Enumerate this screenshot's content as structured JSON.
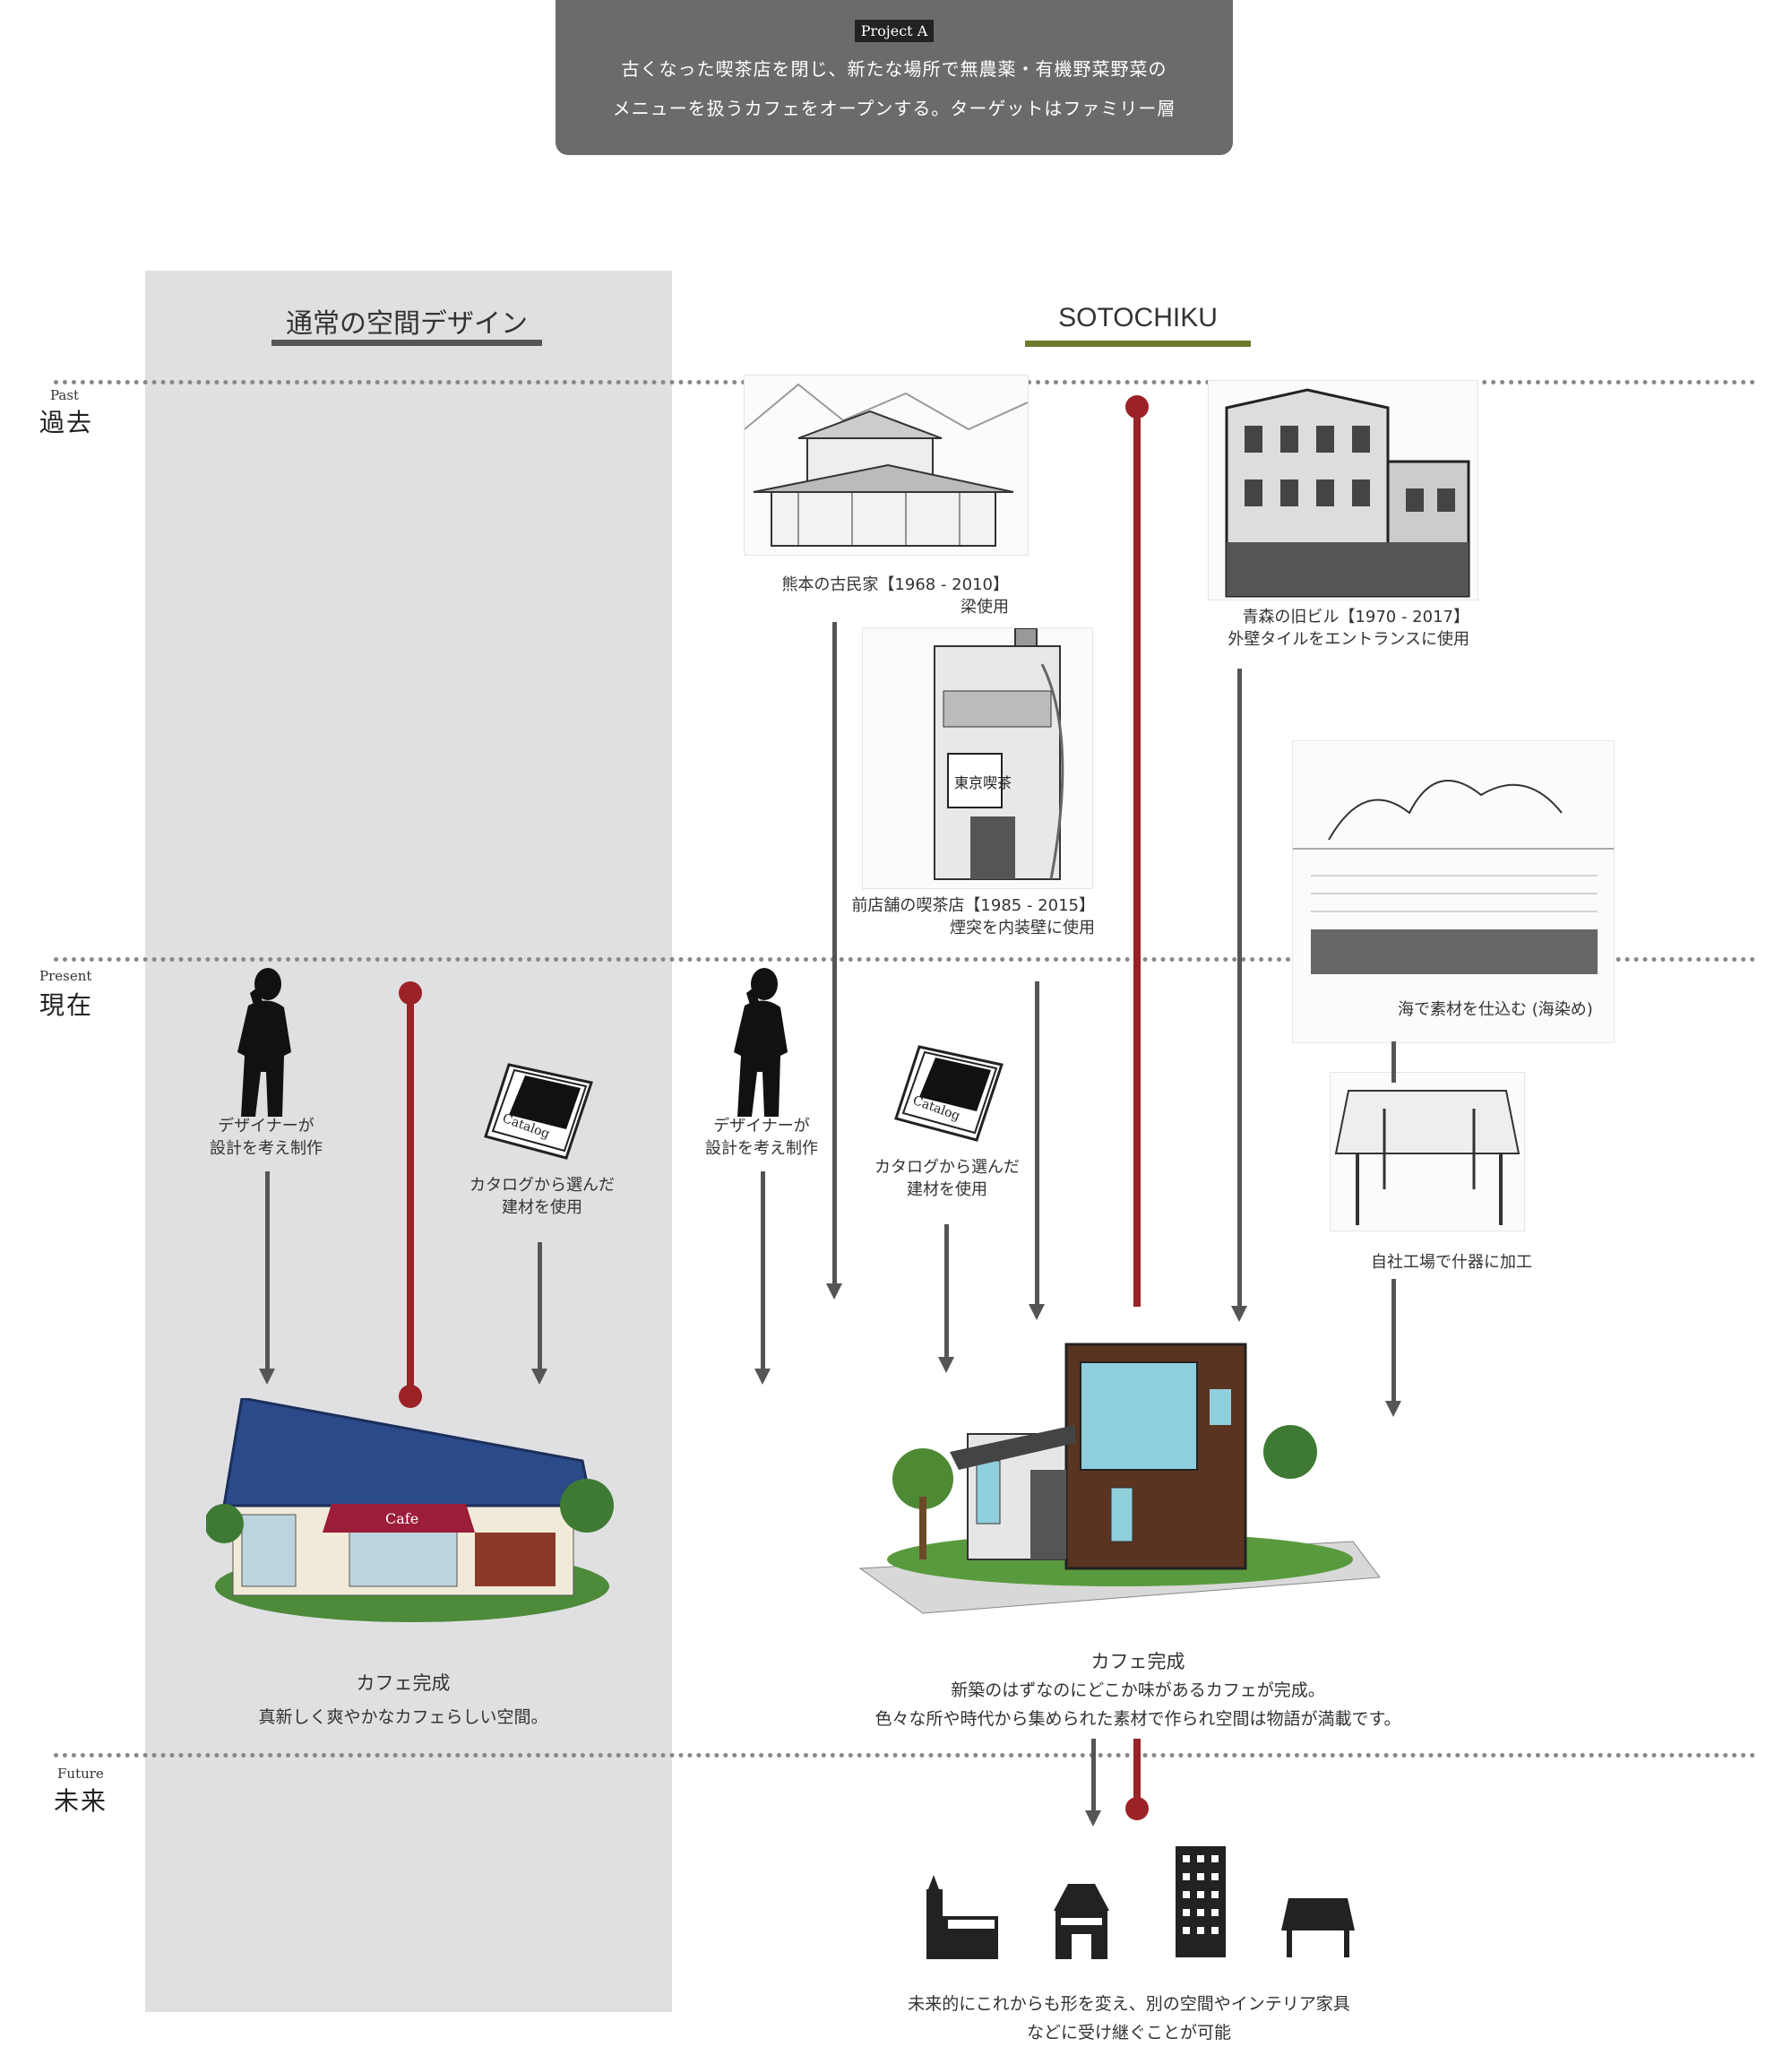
{
  "header": {
    "tag": "Project A",
    "line1": "古くなった喫茶店を閉じ、新たな場所で無農薬・有機野菜野菜の",
    "line2": "メニューを扱うカフェをオープンする。ターゲットはファミリー層"
  },
  "columns": {
    "normal_title": "通常の空間デザイン",
    "sotochiku_title": "SOTOCHIKU"
  },
  "eras": {
    "past_en": "Past",
    "past_jp": "過去",
    "present_en": "Present",
    "present_jp": "現在",
    "future_en": "Future",
    "future_jp": "未来"
  },
  "normal": {
    "designer_l1": "デザイナーが",
    "designer_l2": "設計を考え制作",
    "catalog_l1": "カタログから選んだ",
    "catalog_l2": "建材を使用",
    "result_title": "カフェ完成",
    "result_desc": "真新しく爽やかなカフェらしい空間。"
  },
  "sotochiku": {
    "kumamoto_l1": "熊本の古民家【1968 - 2010】",
    "kumamoto_l2": "梁使用",
    "aomori_l1": "青森の旧ビル【1970 - 2017】",
    "aomori_l2": "外壁タイルをエントランスに使用",
    "kissaten_l1": "前店舗の喫茶店【1985 - 2015】",
    "kissaten_l2": "煙突を内装壁に使用",
    "kissaten_sign": "東京喫茶",
    "sea_caption": "海で素材を仕込む (海染め)",
    "factory_caption": "自社工場で什器に加工",
    "designer_l1": "デザイナーが",
    "designer_l2": "設計を考え制作",
    "catalog_l1": "カタログから選んだ",
    "catalog_l2": "建材を使用",
    "catalog_word": "Catalog",
    "cafe_sign": "Cafe",
    "result_title": "カフェ完成",
    "result_desc1": "新築のはずなのにどこか味があるカフェが完成。",
    "result_desc2": "色々な所や時代から集められた素材で作られ空間は物語が満載です。",
    "future_l1": "未来的にこれからも形を変え、別の空間やインテリア家具",
    "future_l2": "などに受け継ぐことが可能"
  },
  "colors": {
    "timeline_red": "#9b2226",
    "sotochiku_underline": "#6b7a2e",
    "normal_underline": "#555555",
    "header_bg": "#6b6b6b"
  }
}
